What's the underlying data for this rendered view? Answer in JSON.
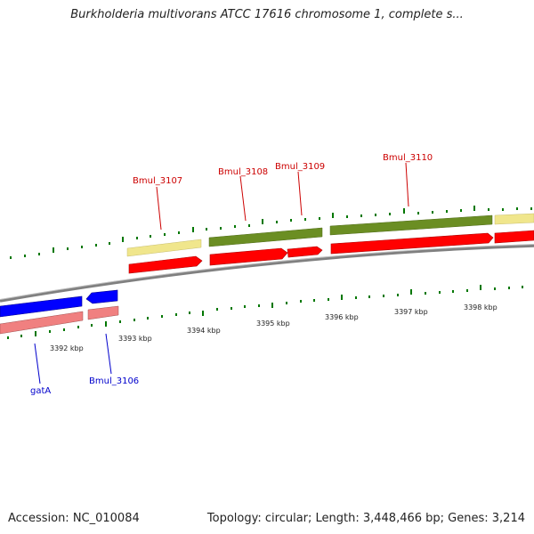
{
  "title": "Burkholderia multivorans ATCC 17616 chromosome 1, complete s...",
  "footer": {
    "accession": "Accession: NC_010084",
    "summary": "Topology: circular; Length: 3,448,466 bp; Genes: 3,214"
  },
  "colors": {
    "forward_label": "#cc0000",
    "reverse_label": "#0000cc",
    "cds": "#ff0000",
    "gene_olive": "#6b8e23",
    "gene_khaki": "#f0e68c",
    "reverse_cds": "#0000ff",
    "reverse_pink": "#f08080",
    "backbone": "#808080",
    "ticks": "#007700"
  },
  "axis_ticks": [
    {
      "label": "3392 kbp"
    },
    {
      "label": "3393 kbp"
    },
    {
      "label": "3394 kbp"
    },
    {
      "label": "3395 kbp"
    },
    {
      "label": "3396 kbp"
    },
    {
      "label": "3397 kbp"
    },
    {
      "label": "3398 kbp"
    }
  ],
  "genes": {
    "forward": [
      {
        "label": "Bmul_3107"
      },
      {
        "label": "Bmul_3108"
      },
      {
        "label": "Bmul_3109"
      },
      {
        "label": "Bmul_3110"
      }
    ],
    "reverse": [
      {
        "label": "gatA"
      },
      {
        "label": "Bmul_3106"
      }
    ]
  }
}
